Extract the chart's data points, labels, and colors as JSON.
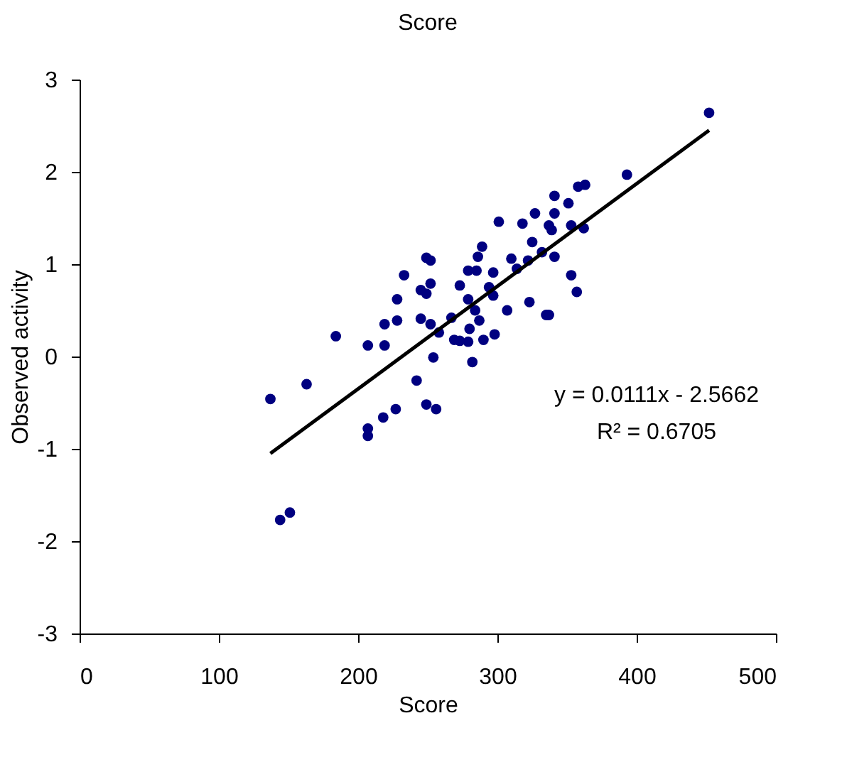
{
  "chart_data": {
    "type": "scatter",
    "title": "Score",
    "xlabel": "Score",
    "ylabel": "Observed activity",
    "xlim": [
      0,
      500
    ],
    "xticks": [
      0,
      100,
      200,
      300,
      400,
      500
    ],
    "ylim": [
      -3,
      3
    ],
    "yticks": [
      -3,
      -2,
      -1,
      0,
      1,
      2,
      3
    ],
    "grid": false,
    "series": [
      {
        "marker": "circle",
        "color": "#000080",
        "x": [
          452,
          393,
          358,
          363,
          341,
          351,
          327,
          341,
          301,
          318,
          337,
          353,
          339,
          362,
          325,
          289,
          332,
          286,
          310,
          322,
          341,
          249,
          252,
          314,
          279,
          285,
          297,
          233,
          353,
          252,
          273,
          294,
          245,
          249,
          297,
          357,
          228,
          279,
          323,
          307,
          284,
          335,
          337,
          228,
          245,
          267,
          287,
          219,
          252,
          280,
          258,
          184,
          298,
          207,
          219,
          269,
          273,
          279,
          290,
          254,
          282,
          163,
          242,
          137,
          249,
          256,
          227,
          218,
          207,
          207,
          151,
          144
        ],
        "values": [
          2.64,
          1.97,
          1.84,
          1.86,
          1.74,
          1.66,
          1.55,
          1.55,
          1.46,
          1.44,
          1.42,
          1.42,
          1.37,
          1.39,
          1.24,
          1.19,
          1.13,
          1.08,
          1.06,
          1.04,
          1.08,
          1.07,
          1.04,
          0.95,
          0.93,
          0.93,
          0.91,
          0.88,
          0.88,
          0.79,
          0.77,
          0.75,
          0.72,
          0.68,
          0.66,
          0.7,
          0.62,
          0.62,
          0.59,
          0.5,
          0.5,
          0.45,
          0.45,
          0.39,
          0.41,
          0.42,
          0.39,
          0.35,
          0.35,
          0.3,
          0.26,
          0.22,
          0.24,
          0.12,
          0.12,
          0.18,
          0.17,
          0.16,
          0.18,
          -0.01,
          -0.06,
          -0.3,
          -0.26,
          -0.46,
          -0.52,
          -0.57,
          -0.57,
          -0.66,
          -0.78,
          -0.86,
          -1.69,
          -1.77
        ]
      },
      {
        "type": "line",
        "line_style": "solid",
        "color": "#000000",
        "x": [
          137,
          452
        ],
        "values": [
          -1.05,
          2.45
        ]
      }
    ],
    "annotations": [
      "y = 0.0111x -  2.5662",
      "R² = 0.6705"
    ]
  }
}
